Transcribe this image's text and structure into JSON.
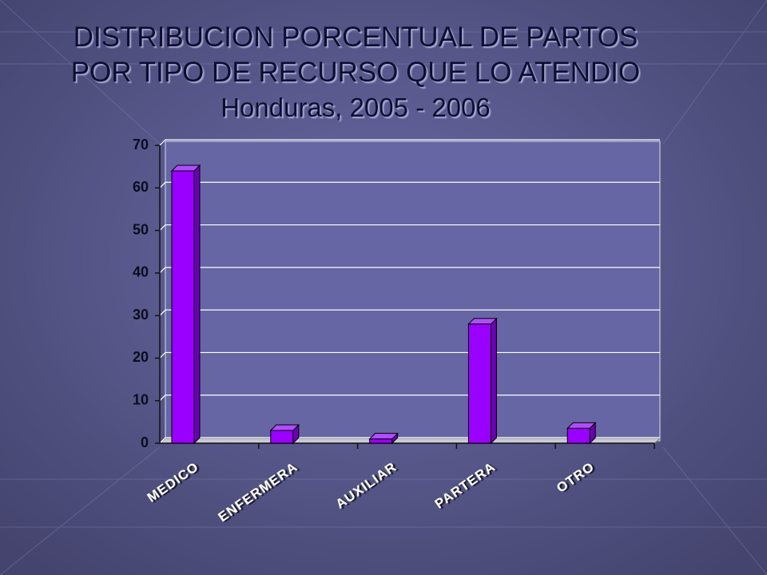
{
  "chart_data": {
    "type": "bar",
    "title": [
      "DISTRIBUCION PORCENTUAL DE PARTOS",
      "POR TIPO DE RECURSO QUE LO ATENDIO"
    ],
    "subtitle": "Honduras, 2005 - 2006",
    "categories": [
      "MEDICO",
      "ENFERMERA",
      "AUXILIAR",
      "PARTERA",
      "OTRO"
    ],
    "values": [
      64,
      3,
      1,
      28,
      3.5
    ],
    "color": "#9900ff",
    "ylim": [
      0,
      70
    ],
    "yticks": [
      0,
      10,
      20,
      30,
      40,
      50,
      60,
      70
    ],
    "grid": true
  }
}
